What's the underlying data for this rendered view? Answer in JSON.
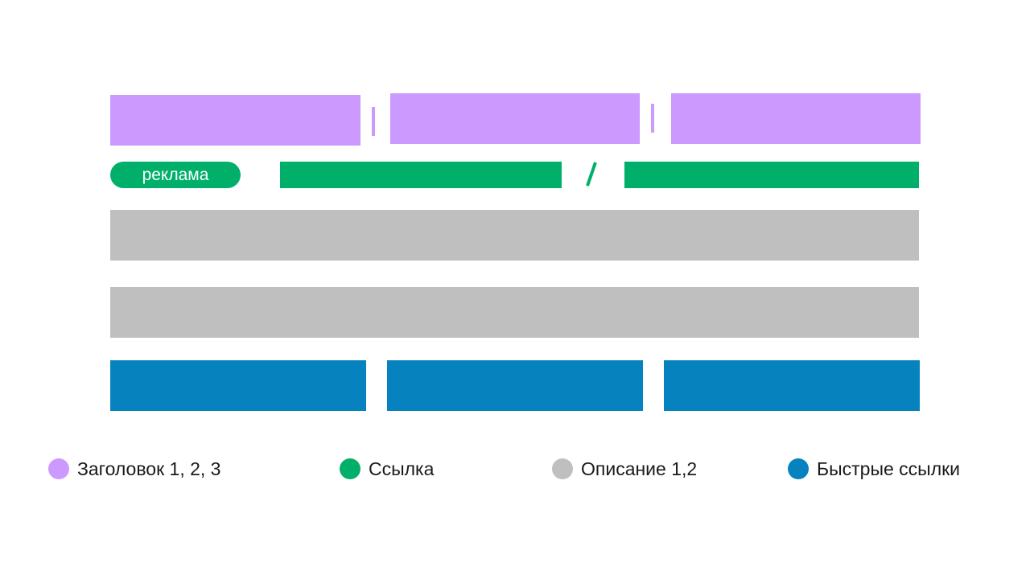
{
  "ad_badge": {
    "label": "реклама"
  },
  "colors": {
    "title": "#cc99ff",
    "link": "#00b06a",
    "description": "#bfbfbf",
    "quick_links": "#0683be"
  },
  "legend": [
    {
      "label": "Заголовок 1, 2, 3",
      "color": "#cc99ff"
    },
    {
      "label": "Ссылка",
      "color": "#00b06a"
    },
    {
      "label": "Описание 1,2",
      "color": "#bfbfbf"
    },
    {
      "label": "Быстрые ссылки",
      "color": "#0683be"
    }
  ]
}
